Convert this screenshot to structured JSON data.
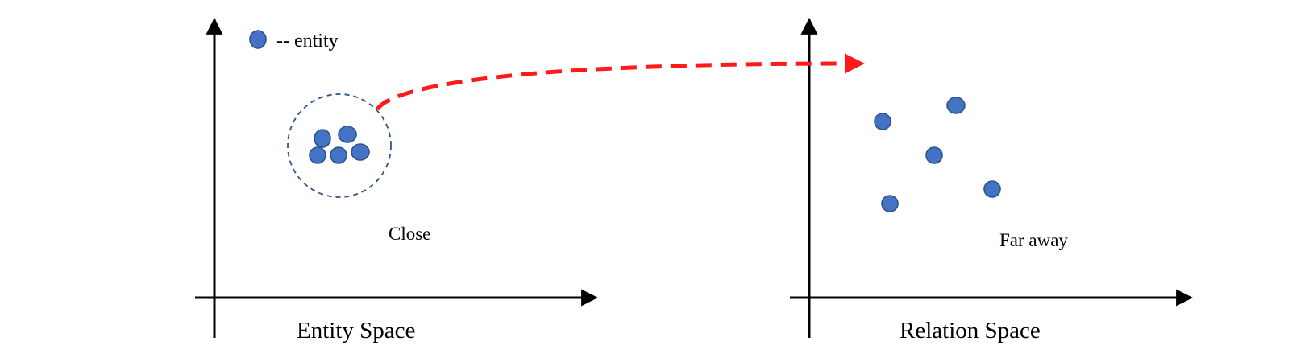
{
  "legend": {
    "label": "-- entity",
    "marker_icon": "filled-circle-icon"
  },
  "entity_space": {
    "title": "Entity Space",
    "note": "Close"
  },
  "relation_space": {
    "title": "Relation Space",
    "note": "Far away"
  },
  "colors": {
    "entity_fill": "#4472c4",
    "entity_stroke": "#2f528f",
    "cluster_outline": "#2f528f",
    "arrow": "#ff1a1a",
    "axis": "#000000"
  }
}
